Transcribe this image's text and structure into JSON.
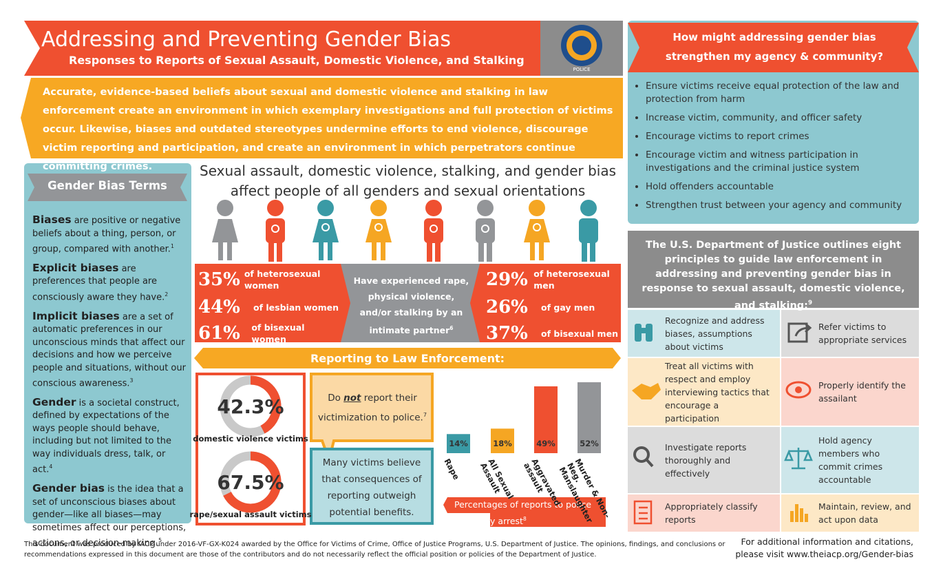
{
  "header": {
    "title": "Addressing and Preventing Gender Bias",
    "subtitle": "Responses to Reports of Sexual Assault, Domestic Violence, and Stalking",
    "logo_label": "POLICE"
  },
  "intro": "Accurate, evidence-based beliefs about sexual and domestic violence and stalking in law enforcement create an environment in which exemplary investigations and full protection of victims occur. Likewise, biases and outdated stereotypes undermine efforts to end violence, discourage victim reporting and participation, and create an environment in which perpetrators continue committing crimes.",
  "terms": {
    "title": "Gender Bias Terms",
    "items": [
      {
        "term": "Biases",
        "definition": " are positive or negative beliefs about a thing, person, or group, compared with another.",
        "note": "1"
      },
      {
        "term": "Explicit biases",
        "definition": " are preferences that people are consciously aware they have.",
        "note": "2"
      },
      {
        "term": "Implicit biases",
        "definition": " are a set of automatic preferences in our unconscious minds that affect our decisions and how we perceive people and situations, without our conscious awareness.",
        "note": "3"
      },
      {
        "term": "Gender",
        "definition": " is a societal construct, defined by expectations of the ways people should behave, including but not limited to the way individuals dress, talk, or act.",
        "note": "4"
      },
      {
        "term": "Gender bias",
        "definition": " is the idea that a set of unconscious biases about gender—like all biases—may sometimes affect our perceptions, actions, or decision-making.",
        "note": "5"
      }
    ]
  },
  "prevalence": {
    "heading": "Sexual assault, domestic violence, stalking, and gender bias affect people of all genders and sexual orientations",
    "women": [
      {
        "value": "35%",
        "label": "of heterosexual women"
      },
      {
        "value": "44%",
        "label": "of lesbian women"
      },
      {
        "value": "61%",
        "label": "of bisexual women"
      }
    ],
    "center_text": "Have experienced rape, physical violence, and/or stalking by an intimate partner",
    "center_note": "6",
    "men": [
      {
        "value": "29%",
        "label": "of heterosexual men"
      },
      {
        "value": "26%",
        "label": "of gay men"
      },
      {
        "value": "37%",
        "label": "of bisexual men"
      }
    ]
  },
  "reporting": {
    "title": "Reporting to Law Enforcement:",
    "donuts": [
      {
        "value": 42.3,
        "label": "42.3%",
        "caption": "domestic violence victims",
        "color": "#ef5030"
      },
      {
        "value": 67.5,
        "label": "67.5%",
        "caption": "rape/sexual assault victims",
        "color": "#ef5030"
      }
    ],
    "not_report": {
      "pre": "Do ",
      "emphasis": "not",
      "post": " report their victimization to police.",
      "note": "7"
    },
    "belief": "Many victims believe that consequences of reporting outweigh potential benefits.",
    "closed_by_arrest": {
      "type": "bar",
      "categories": [
        "Rape",
        "All Sexual Assault",
        "Aggravated assault",
        "Murder & Non-Neg. Manslaughter"
      ],
      "values": [
        14,
        18,
        49,
        52
      ],
      "value_labels": [
        "14%",
        "18%",
        "49%",
        "52%"
      ],
      "colors": [
        "#3a9aa5",
        "#f5a623",
        "#ef5030",
        "#939598"
      ],
      "ylim": [
        0,
        100
      ],
      "caption": "Percentages of reports to police closed by arrest",
      "note": "8"
    }
  },
  "benefits": {
    "title": "How might addressing gender bias strengthen my agency & community?",
    "items": [
      "Ensure victims receive equal protection of the law and protection from harm",
      "Increase victim, community, and officer safety",
      "Encourage victims to report crimes",
      "Encourage victim and witness participation in investigations and the criminal justice system",
      "Hold offenders accountable",
      "Strengthen trust between your agency and community"
    ]
  },
  "principles": {
    "title": "The U.S. Department of Justice outlines eight principles to guide law enforcement in addressing and preventing gender bias in response to sexual assault, domestic violence, and stalking:",
    "note": "9",
    "items": [
      "Recognize and address biases, assumptions about victims",
      "Refer victims to appropriate services",
      "Treat all victims with respect and employ interviewing tactics that encourage a participation",
      "Properly identify the assailant",
      "Investigate reports thoroughly and effectively",
      "Hold agency members who commit crimes accountable",
      "Appropriately classify reports",
      "Maintain, review, and act upon data"
    ]
  },
  "footer": {
    "disclaimer": "This document was produced by IACP under 2016-VF-GX-K024 awarded by the Office for Victims of Crime, Office of Justice Programs, U.S. Department of Justice. The opinions, findings, and conclusions or recommendations expressed in this document are those of the contributors and do not necessarily reflect the official position or policies of the Department of Justice.",
    "more_info": "For additional information and citations, please visit www.theiacp.org/Gender-bias"
  }
}
